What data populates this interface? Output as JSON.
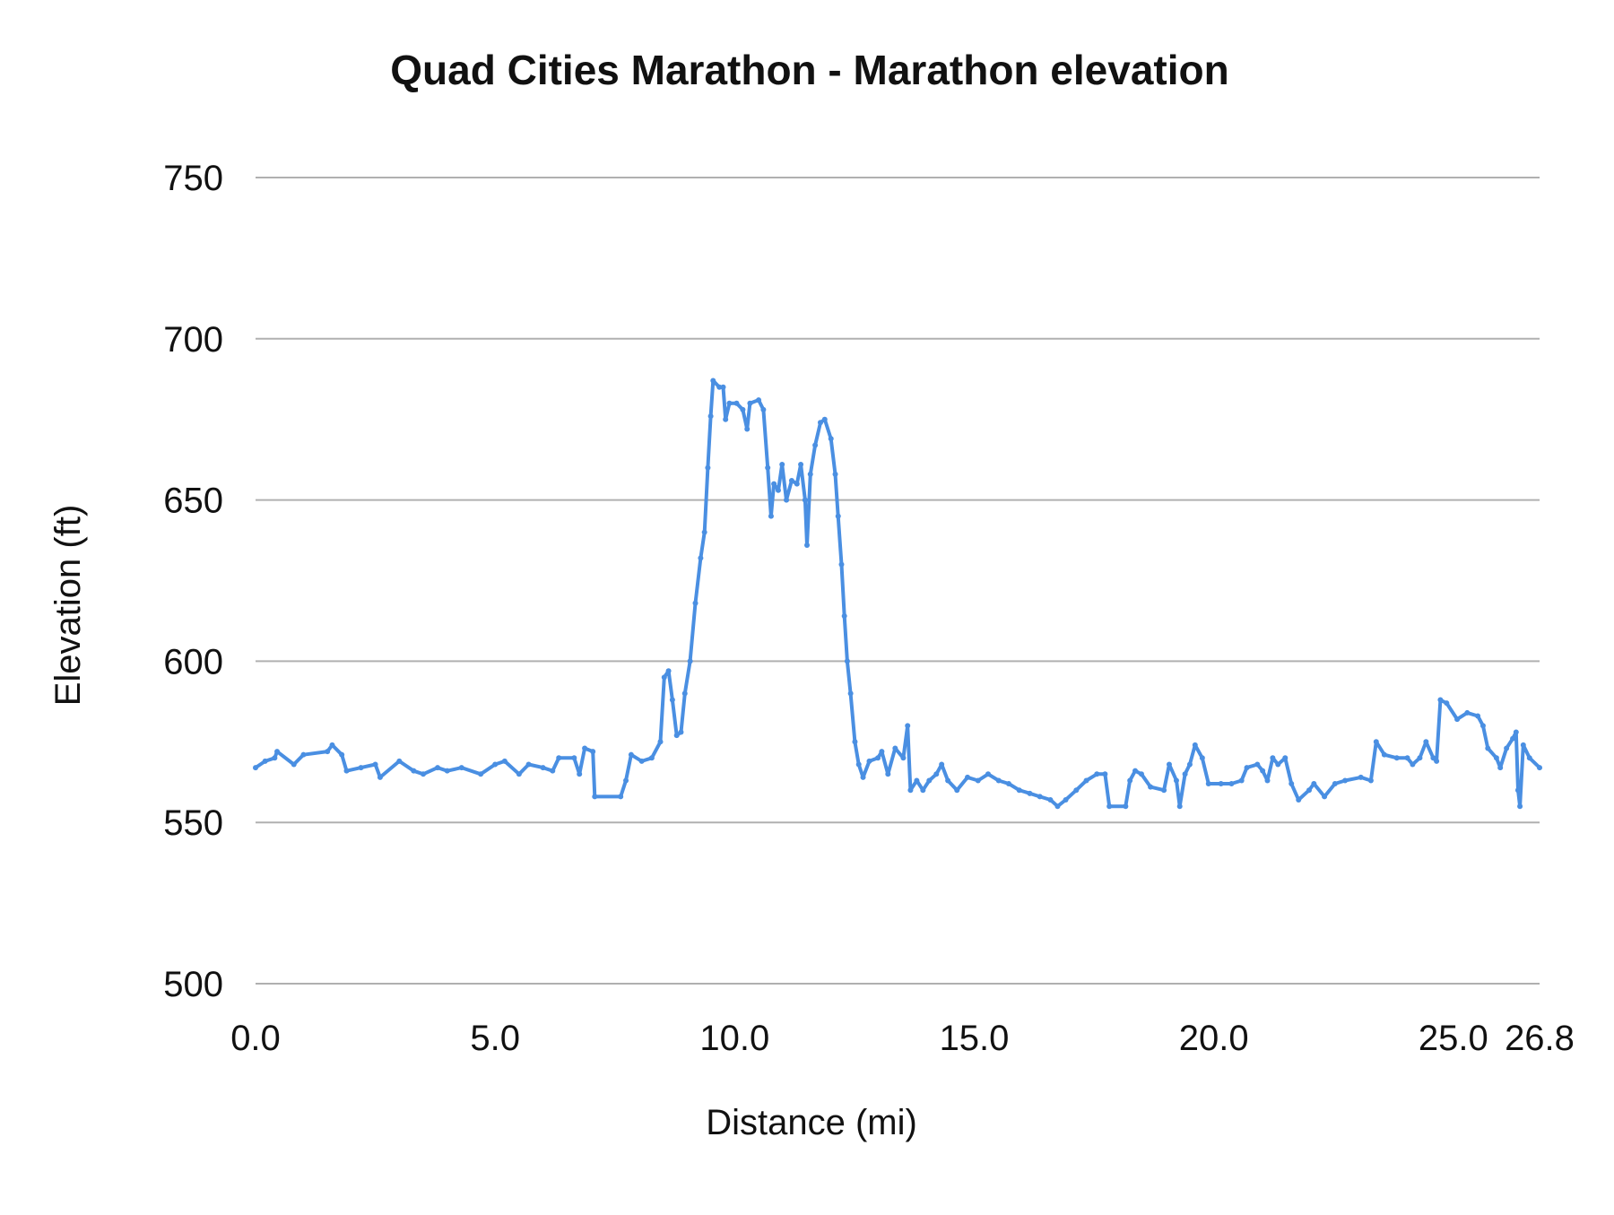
{
  "chart_data": {
    "type": "line",
    "title": "Quad Cities Marathon - Marathon elevation",
    "xlabel": "Distance (mi)",
    "ylabel": "Elevation (ft)",
    "xlim": [
      0,
      26.8
    ],
    "ylim": [
      500,
      750
    ],
    "x_ticks": [
      0,
      5,
      10,
      15,
      20,
      25,
      26.8
    ],
    "x_tick_labels": [
      "0.0",
      "5.0",
      "10.0",
      "15.0",
      "20.0",
      "25.0",
      "26.8"
    ],
    "y_ticks": [
      500,
      550,
      600,
      650,
      700,
      750
    ],
    "y_tick_labels": [
      "500",
      "550",
      "600",
      "650",
      "700",
      "750"
    ],
    "grid": "horizontal",
    "legend": "none",
    "color": "#4a8fe2",
    "series": [
      {
        "x": [
          0,
          0.2,
          0.4,
          0.45,
          0.8,
          1.0,
          1.5,
          1.6,
          1.8,
          1.9,
          2.2,
          2.5,
          2.6,
          3.0,
          3.3,
          3.5,
          3.8,
          4.0,
          4.3,
          4.7,
          5.0,
          5.2,
          5.5,
          5.7,
          6.0,
          6.2,
          6.33,
          6.65,
          6.76,
          6.87,
          7.04,
          7.08,
          7.62,
          7.73,
          7.84,
          8.06,
          8.27,
          8.45,
          8.53,
          8.62,
          8.7,
          8.79,
          8.88,
          8.96,
          9.07,
          9.18,
          9.29,
          9.37,
          9.44,
          9.5,
          9.55,
          9.68,
          9.76,
          9.81,
          9.89,
          10.04,
          10.17,
          10.26,
          10.32,
          10.5,
          10.6,
          10.69,
          10.76,
          10.82,
          10.91,
          10.99,
          11.08,
          11.19,
          11.3,
          11.38,
          11.47,
          11.51,
          11.58,
          11.68,
          11.79,
          11.88,
          12.01,
          12.1,
          12.16,
          12.23,
          12.29,
          12.35,
          12.42,
          12.51,
          12.59,
          12.68,
          12.81,
          12.99,
          13.07,
          13.2,
          13.35,
          13.52,
          13.61,
          13.67,
          13.8,
          13.93,
          14.06,
          14.21,
          14.32,
          14.45,
          14.64,
          14.86,
          15.08,
          15.29,
          15.51,
          15.72,
          15.94,
          16.16,
          16.37,
          16.59,
          16.74,
          16.91,
          17.13,
          17.34,
          17.56,
          17.73,
          17.82,
          18.16,
          18.25,
          18.36,
          18.49,
          18.68,
          18.96,
          19.07,
          19.22,
          19.29,
          19.4,
          19.5,
          19.61,
          19.76,
          19.89,
          20.15,
          20.37,
          20.58,
          20.69,
          20.91,
          21.02,
          21.12,
          21.23,
          21.34,
          21.49,
          21.62,
          21.77,
          21.99,
          22.09,
          22.31,
          22.53,
          22.74,
          23.07,
          23.28,
          23.39,
          23.56,
          23.82,
          24.04,
          24.15,
          24.3,
          24.43,
          24.58,
          24.65,
          24.73,
          24.86,
          25.08,
          25.29,
          25.51,
          25.62,
          25.72,
          25.9,
          25.98,
          26.11,
          26.24,
          26.31,
          26.35,
          26.39,
          26.46,
          26.59,
          26.8
        ],
        "y": [
          567,
          569,
          570,
          572,
          568,
          571,
          572,
          574,
          571,
          566,
          567,
          568,
          564,
          569,
          566,
          565,
          567,
          566,
          567,
          565,
          568,
          569,
          565,
          568,
          567,
          566,
          570,
          570,
          565,
          573,
          572,
          558,
          558,
          563,
          571,
          569,
          570,
          575,
          595,
          597,
          588,
          577,
          578,
          590,
          600,
          618,
          632,
          640,
          660,
          676,
          687,
          685,
          685,
          675,
          680,
          680,
          678,
          672,
          680,
          681,
          678,
          660,
          645,
          655,
          653,
          661,
          650,
          656,
          655,
          661,
          650,
          636,
          658,
          667,
          674,
          675,
          669,
          658,
          645,
          630,
          614,
          600,
          590,
          575,
          568,
          564,
          569,
          570,
          572,
          565,
          573,
          570,
          580,
          560,
          563,
          560,
          563,
          565,
          568,
          563,
          560,
          564,
          563,
          565,
          563,
          562,
          560,
          559,
          558,
          557,
          555,
          557,
          560,
          563,
          565,
          565,
          555,
          555,
          563,
          566,
          565,
          561,
          560,
          568,
          563,
          555,
          565,
          568,
          574,
          570,
          562,
          562,
          562,
          563,
          567,
          568,
          566,
          563,
          570,
          568,
          570,
          562,
          557,
          560,
          562,
          558,
          562,
          563,
          564,
          563,
          575,
          571,
          570,
          570,
          568,
          570,
          575,
          570,
          569,
          588,
          587,
          582,
          584,
          583,
          580,
          573,
          570,
          567,
          573,
          576,
          578,
          560,
          555,
          574,
          570,
          567
        ]
      }
    ]
  }
}
